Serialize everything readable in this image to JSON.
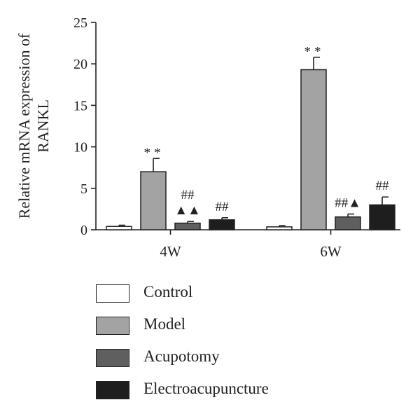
{
  "chart_data": {
    "type": "bar",
    "ylabel_lines": [
      "Relative mRNA expression of",
      "RANKL"
    ],
    "ylim": [
      0,
      25
    ],
    "yticks": [
      0,
      5,
      10,
      15,
      20,
      25
    ],
    "categories": [
      "4W",
      "6W"
    ],
    "series": [
      {
        "name": "Control",
        "color": "#ffffff",
        "values": [
          0.4,
          0.35
        ],
        "errors": [
          0.15,
          0.15
        ],
        "marks": [
          "",
          ""
        ]
      },
      {
        "name": "Model",
        "color": "#a3a3a3",
        "values": [
          7.0,
          19.3
        ],
        "errors": [
          1.6,
          1.5
        ],
        "marks": [
          "**",
          "**"
        ]
      },
      {
        "name": "Acupotomy",
        "color": "#5f5f5f",
        "values": [
          0.8,
          1.55
        ],
        "errors": [
          0.2,
          0.35
        ],
        "marks": [
          "##\n▲▲",
          "##▲"
        ]
      },
      {
        "name": "Electroacupuncture",
        "color": "#1e1e1e",
        "values": [
          1.2,
          3.0
        ],
        "errors": [
          0.25,
          0.95
        ],
        "marks": [
          "##",
          "##"
        ]
      }
    ],
    "legend_position": "bottom",
    "grid": false
  }
}
